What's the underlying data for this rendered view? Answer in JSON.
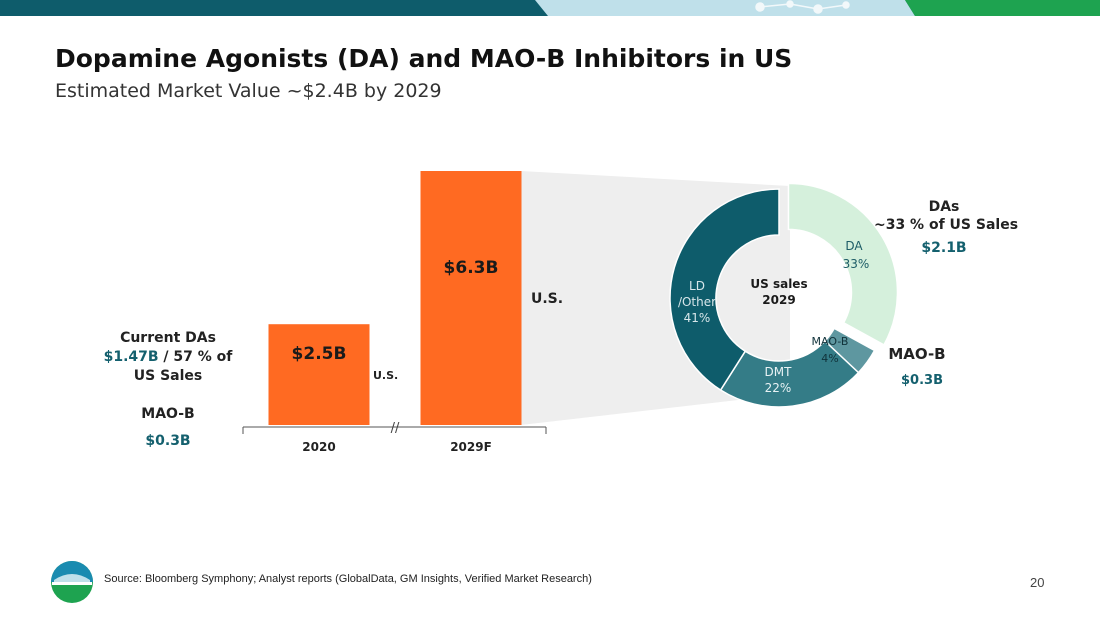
{
  "header": {
    "title": "Dopamine Agonists (DA) and MAO-B Inhibitors in US",
    "subtitle": "Estimated Market Value ~$2.4B by 2029"
  },
  "colors": {
    "bar": "#ff6a22",
    "da": "#d5f0dc",
    "ld": "#0e5c6b",
    "dmt": "#347c87",
    "maob": "#5e97a0",
    "teal_text": "#14606e",
    "banner_dark": "#0e5c6b",
    "banner_light": "#bfe0ea",
    "banner_green": "#1ea350",
    "connector": "#eeeeee"
  },
  "chart_data": [
    {
      "type": "bar",
      "categories": [
        "2020",
        "2029F"
      ],
      "values": [
        2.5,
        6.3
      ],
      "value_labels": [
        "$2.5B",
        "$6.3B"
      ],
      "unit": "$B",
      "segment_labels": [
        "U.S.",
        "U.S."
      ],
      "axis_break": "//",
      "ylim": [
        0,
        6.3
      ]
    },
    {
      "type": "pie",
      "variant": "donut",
      "center_label": [
        "US sales",
        "2029"
      ],
      "slices": [
        {
          "name": "DA",
          "value": 33,
          "label": "33%",
          "color": "#d5f0dc",
          "exploded": true
        },
        {
          "name": "MAO-B",
          "value": 4,
          "label": "4%",
          "color": "#5e97a0"
        },
        {
          "name": "DMT",
          "value": 22,
          "label": "22%",
          "color": "#347c87"
        },
        {
          "name": "LD /Other",
          "value": 41,
          "label": "41%",
          "color": "#0e5c6b",
          "lines": [
            "LD",
            "/Other"
          ]
        }
      ]
    }
  ],
  "annotations": {
    "current_das": {
      "line1": "Current DAs",
      "amount": "$1.47B",
      "rest": " / 57 % of",
      "line3": "US Sales"
    },
    "maob_2020": {
      "label": "MAO-B",
      "value": "$0.3B"
    },
    "das_2029": {
      "label": "DAs",
      "share": "~33 % of US Sales",
      "value": "$2.1B"
    },
    "maob_2029": {
      "label": "MAO-B",
      "value": "$0.3B"
    }
  },
  "footer": {
    "source": "Source: Bloomberg Symphony; Analyst reports (GlobalData, GM Insights, Verified Market Research)",
    "page_number": "20"
  }
}
